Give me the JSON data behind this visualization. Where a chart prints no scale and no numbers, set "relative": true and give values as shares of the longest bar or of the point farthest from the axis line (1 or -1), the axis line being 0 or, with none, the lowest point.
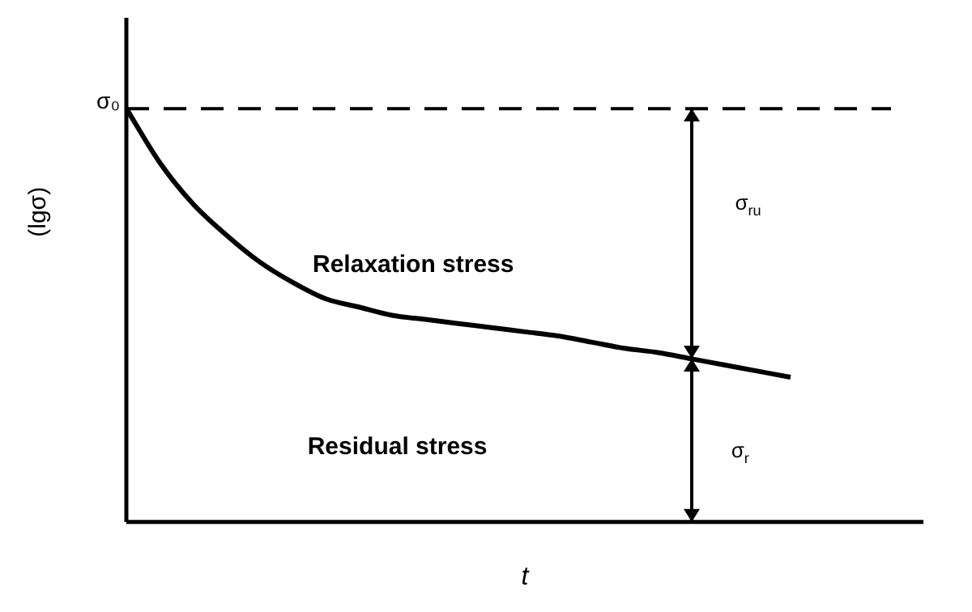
{
  "chart_data": {
    "type": "line",
    "relative": true,
    "xlabel": "t",
    "ylabel": "(lgσ)",
    "categories": [
      null,
      null,
      null,
      null,
      null,
      null,
      null,
      null,
      null,
      null,
      null,
      null,
      null,
      null,
      null,
      null,
      null,
      null,
      null,
      null,
      null,
      null,
      null,
      null,
      null
    ],
    "series": [
      {
        "color": "#000000",
        "values": [
          1.0,
          0.87,
          0.77,
          0.695,
          0.63,
          0.58,
          0.54,
          0.52,
          0.5,
          0.49,
          0.48,
          0.47,
          0.46,
          0.45,
          0.435,
          0.42,
          0.41,
          0.395,
          0.38,
          0.365,
          0.35,
          null,
          null,
          null,
          null
        ]
      }
    ],
    "ref_lines": [
      {
        "axis": "y",
        "value": 1,
        "label": "σ₀",
        "line_style": "dashed",
        "color": "#000000"
      }
    ],
    "annotations": [
      "Relaxation stress",
      "Residual stress",
      "σ$_{ru}$",
      "σ$_{r}$"
    ]
  }
}
